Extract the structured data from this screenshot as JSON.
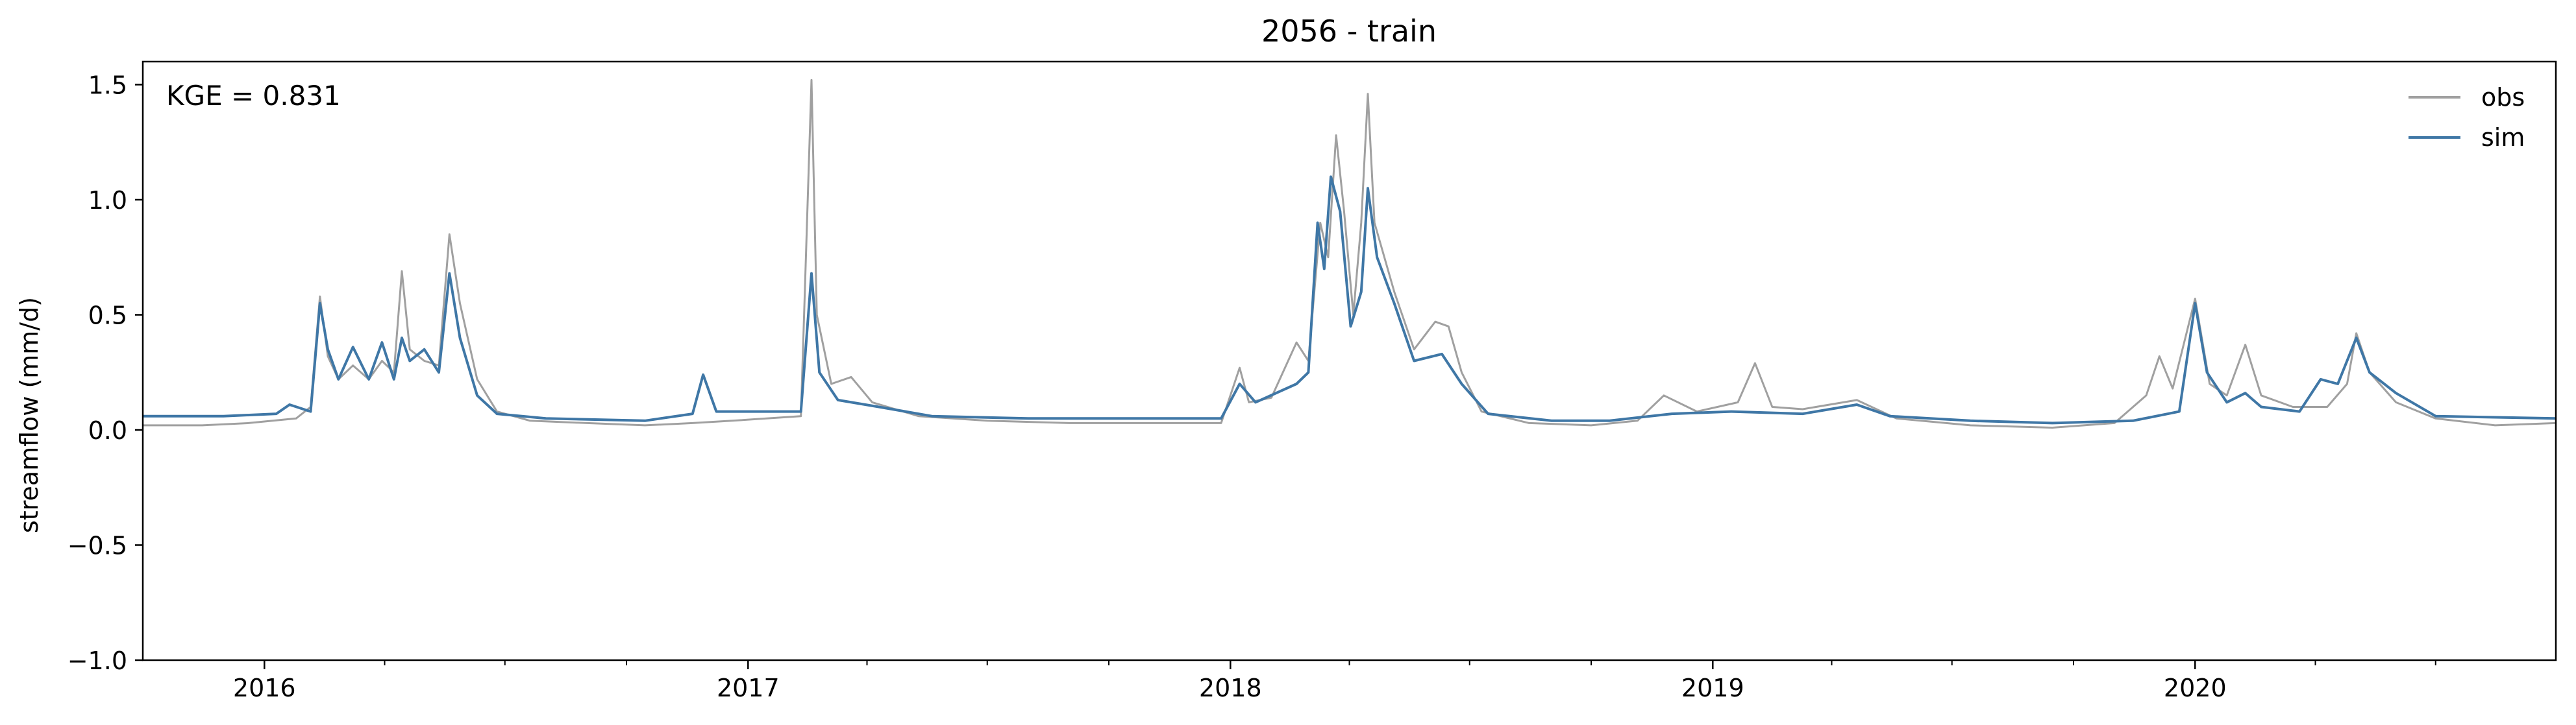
{
  "chart_data": {
    "type": "line",
    "title": "2056 - train",
    "xlabel": "",
    "ylabel": "streamflow (mm/d)",
    "annotation": "KGE = 0.831",
    "xlim": [
      "2015-10-01",
      "2020-09-30"
    ],
    "ylim": [
      -1.0,
      1.6
    ],
    "yticks": [
      -1.0,
      -0.5,
      0.0,
      0.5,
      1.0,
      1.5
    ],
    "ytick_labels": [
      "−1.0",
      "−0.5",
      "0.0",
      "0.5",
      "1.0",
      "1.5"
    ],
    "xticks": [
      "2016-01-01",
      "2017-01-01",
      "2018-01-01",
      "2019-01-01",
      "2020-01-01"
    ],
    "xtick_labels": [
      "2016",
      "2017",
      "2018",
      "2019",
      "2020"
    ],
    "grid": false,
    "legend_position": "top-right",
    "series": [
      {
        "name": "obs",
        "color": "#a0a0a0",
        "points": [
          [
            "2015-10-01",
            0.02
          ],
          [
            "2015-11-15",
            0.02
          ],
          [
            "2015-12-20",
            0.03
          ],
          [
            "2016-01-25",
            0.05
          ],
          [
            "2016-02-05",
            0.1
          ],
          [
            "2016-02-12",
            0.58
          ],
          [
            "2016-02-18",
            0.32
          ],
          [
            "2016-02-26",
            0.22
          ],
          [
            "2016-03-08",
            0.28
          ],
          [
            "2016-03-20",
            0.22
          ],
          [
            "2016-03-30",
            0.3
          ],
          [
            "2016-04-08",
            0.25
          ],
          [
            "2016-04-14",
            0.69
          ],
          [
            "2016-04-20",
            0.35
          ],
          [
            "2016-05-01",
            0.3
          ],
          [
            "2016-05-12",
            0.28
          ],
          [
            "2016-05-20",
            0.85
          ],
          [
            "2016-05-28",
            0.55
          ],
          [
            "2016-06-10",
            0.22
          ],
          [
            "2016-06-25",
            0.08
          ],
          [
            "2016-07-20",
            0.04
          ],
          [
            "2016-09-01",
            0.03
          ],
          [
            "2016-10-15",
            0.02
          ],
          [
            "2016-11-20",
            0.03
          ],
          [
            "2016-12-20",
            0.04
          ],
          [
            "2017-02-10",
            0.06
          ],
          [
            "2017-02-18",
            1.52
          ],
          [
            "2017-02-22",
            0.5
          ],
          [
            "2017-03-05",
            0.2
          ],
          [
            "2017-03-20",
            0.23
          ],
          [
            "2017-04-05",
            0.12
          ],
          [
            "2017-05-10",
            0.06
          ],
          [
            "2017-07-01",
            0.04
          ],
          [
            "2017-09-01",
            0.03
          ],
          [
            "2017-11-01",
            0.03
          ],
          [
            "2017-12-25",
            0.03
          ],
          [
            "2018-01-08",
            0.27
          ],
          [
            "2018-01-15",
            0.12
          ],
          [
            "2018-02-01",
            0.14
          ],
          [
            "2018-02-20",
            0.38
          ],
          [
            "2018-03-01",
            0.3
          ],
          [
            "2018-03-10",
            0.9
          ],
          [
            "2018-03-16",
            0.75
          ],
          [
            "2018-03-22",
            1.28
          ],
          [
            "2018-03-28",
            0.95
          ],
          [
            "2018-04-04",
            0.5
          ],
          [
            "2018-04-10",
            0.9
          ],
          [
            "2018-04-15",
            1.46
          ],
          [
            "2018-04-20",
            0.9
          ],
          [
            "2018-05-05",
            0.6
          ],
          [
            "2018-05-20",
            0.35
          ],
          [
            "2018-06-05",
            0.47
          ],
          [
            "2018-06-15",
            0.45
          ],
          [
            "2018-06-25",
            0.25
          ],
          [
            "2018-07-10",
            0.08
          ],
          [
            "2018-08-15",
            0.03
          ],
          [
            "2018-10-01",
            0.02
          ],
          [
            "2018-11-05",
            0.04
          ],
          [
            "2018-11-25",
            0.15
          ],
          [
            "2018-12-20",
            0.08
          ],
          [
            "2019-01-20",
            0.12
          ],
          [
            "2019-02-02",
            0.29
          ],
          [
            "2019-02-15",
            0.1
          ],
          [
            "2019-03-10",
            0.09
          ],
          [
            "2019-04-20",
            0.13
          ],
          [
            "2019-05-20",
            0.05
          ],
          [
            "2019-07-15",
            0.02
          ],
          [
            "2019-09-15",
            0.01
          ],
          [
            "2019-11-01",
            0.03
          ],
          [
            "2019-11-25",
            0.15
          ],
          [
            "2019-12-05",
            0.32
          ],
          [
            "2019-12-15",
            0.18
          ],
          [
            "2020-01-01",
            0.57
          ],
          [
            "2020-01-12",
            0.2
          ],
          [
            "2020-01-25",
            0.15
          ],
          [
            "2020-02-08",
            0.37
          ],
          [
            "2020-02-20",
            0.15
          ],
          [
            "2020-03-15",
            0.1
          ],
          [
            "2020-04-10",
            0.1
          ],
          [
            "2020-04-25",
            0.2
          ],
          [
            "2020-05-02",
            0.42
          ],
          [
            "2020-05-12",
            0.25
          ],
          [
            "2020-06-01",
            0.12
          ],
          [
            "2020-07-01",
            0.05
          ],
          [
            "2020-08-15",
            0.02
          ],
          [
            "2020-09-30",
            0.03
          ]
        ]
      },
      {
        "name": "sim",
        "color": "#3f77a6",
        "points": [
          [
            "2015-10-01",
            0.06
          ],
          [
            "2015-12-01",
            0.06
          ],
          [
            "2016-01-10",
            0.07
          ],
          [
            "2016-01-20",
            0.11
          ],
          [
            "2016-02-05",
            0.08
          ],
          [
            "2016-02-12",
            0.55
          ],
          [
            "2016-02-18",
            0.35
          ],
          [
            "2016-02-26",
            0.22
          ],
          [
            "2016-03-08",
            0.36
          ],
          [
            "2016-03-20",
            0.22
          ],
          [
            "2016-03-30",
            0.38
          ],
          [
            "2016-04-08",
            0.22
          ],
          [
            "2016-04-14",
            0.4
          ],
          [
            "2016-04-20",
            0.3
          ],
          [
            "2016-05-01",
            0.35
          ],
          [
            "2016-05-12",
            0.25
          ],
          [
            "2016-05-20",
            0.68
          ],
          [
            "2016-05-28",
            0.4
          ],
          [
            "2016-06-10",
            0.15
          ],
          [
            "2016-06-25",
            0.07
          ],
          [
            "2016-08-01",
            0.05
          ],
          [
            "2016-10-15",
            0.04
          ],
          [
            "2016-11-20",
            0.07
          ],
          [
            "2016-11-28",
            0.24
          ],
          [
            "2016-12-08",
            0.08
          ],
          [
            "2017-02-10",
            0.08
          ],
          [
            "2017-02-18",
            0.68
          ],
          [
            "2017-02-24",
            0.25
          ],
          [
            "2017-03-10",
            0.13
          ],
          [
            "2017-04-10",
            0.1
          ],
          [
            "2017-05-20",
            0.06
          ],
          [
            "2017-08-01",
            0.05
          ],
          [
            "2017-10-15",
            0.05
          ],
          [
            "2017-12-25",
            0.05
          ],
          [
            "2018-01-08",
            0.2
          ],
          [
            "2018-01-20",
            0.12
          ],
          [
            "2018-02-20",
            0.2
          ],
          [
            "2018-03-01",
            0.25
          ],
          [
            "2018-03-08",
            0.9
          ],
          [
            "2018-03-13",
            0.7
          ],
          [
            "2018-03-18",
            1.1
          ],
          [
            "2018-03-25",
            0.95
          ],
          [
            "2018-04-02",
            0.45
          ],
          [
            "2018-04-10",
            0.6
          ],
          [
            "2018-04-15",
            1.05
          ],
          [
            "2018-04-22",
            0.75
          ],
          [
            "2018-05-05",
            0.55
          ],
          [
            "2018-05-20",
            0.3
          ],
          [
            "2018-06-10",
            0.33
          ],
          [
            "2018-06-25",
            0.2
          ],
          [
            "2018-07-15",
            0.07
          ],
          [
            "2018-09-01",
            0.04
          ],
          [
            "2018-10-15",
            0.04
          ],
          [
            "2018-12-01",
            0.07
          ],
          [
            "2019-01-15",
            0.08
          ],
          [
            "2019-03-10",
            0.07
          ],
          [
            "2019-04-20",
            0.11
          ],
          [
            "2019-05-15",
            0.06
          ],
          [
            "2019-07-15",
            0.04
          ],
          [
            "2019-09-15",
            0.03
          ],
          [
            "2019-11-15",
            0.04
          ],
          [
            "2019-12-20",
            0.08
          ],
          [
            "2020-01-01",
            0.55
          ],
          [
            "2020-01-10",
            0.25
          ],
          [
            "2020-01-25",
            0.12
          ],
          [
            "2020-02-08",
            0.16
          ],
          [
            "2020-02-20",
            0.1
          ],
          [
            "2020-03-20",
            0.08
          ],
          [
            "2020-04-05",
            0.22
          ],
          [
            "2020-04-18",
            0.2
          ],
          [
            "2020-05-02",
            0.4
          ],
          [
            "2020-05-12",
            0.25
          ],
          [
            "2020-06-01",
            0.16
          ],
          [
            "2020-07-01",
            0.06
          ],
          [
            "2020-09-30",
            0.05
          ]
        ]
      }
    ]
  }
}
